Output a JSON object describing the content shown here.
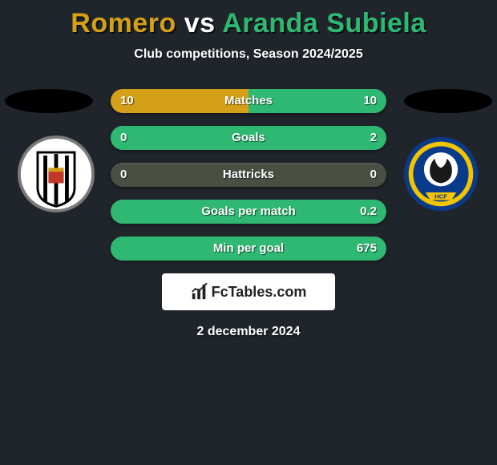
{
  "header": {
    "title_left": "Romero",
    "title_vs": " vs ",
    "title_right": "Aranda Subiela",
    "title_color_left": "#d4a017",
    "title_color_vs": "#ffffff",
    "title_color_right": "#2eb872",
    "subtitle": "Club competitions, Season 2024/2025"
  },
  "colors": {
    "left_fill": "#d4a017",
    "right_fill": "#2eb872",
    "bar_bg": "#4a4f44",
    "page_bg": "#1f252b"
  },
  "stats": [
    {
      "label": "Matches",
      "left_val": "10",
      "right_val": "10",
      "left_pct": 50,
      "right_pct": 50
    },
    {
      "label": "Goals",
      "left_val": "0",
      "right_val": "2",
      "left_pct": 0,
      "right_pct": 100
    },
    {
      "label": "Hattricks",
      "left_val": "0",
      "right_val": "0",
      "left_pct": 0,
      "right_pct": 0
    },
    {
      "label": "Goals per match",
      "left_val": "",
      "right_val": "0.2",
      "left_pct": 0,
      "right_pct": 100
    },
    {
      "label": "Min per goal",
      "left_val": "",
      "right_val": "675",
      "left_pct": 0,
      "right_pct": 100
    }
  ],
  "badges": {
    "left": {
      "bg": "#ffffff",
      "ring": "#7a7a7a",
      "type": "merida"
    },
    "right": {
      "bg": "#f2c400",
      "ring": "#0a3a8a",
      "type": "hercules"
    }
  },
  "footer": {
    "logo_text": "FcTables.com",
    "date": "2 december 2024"
  }
}
